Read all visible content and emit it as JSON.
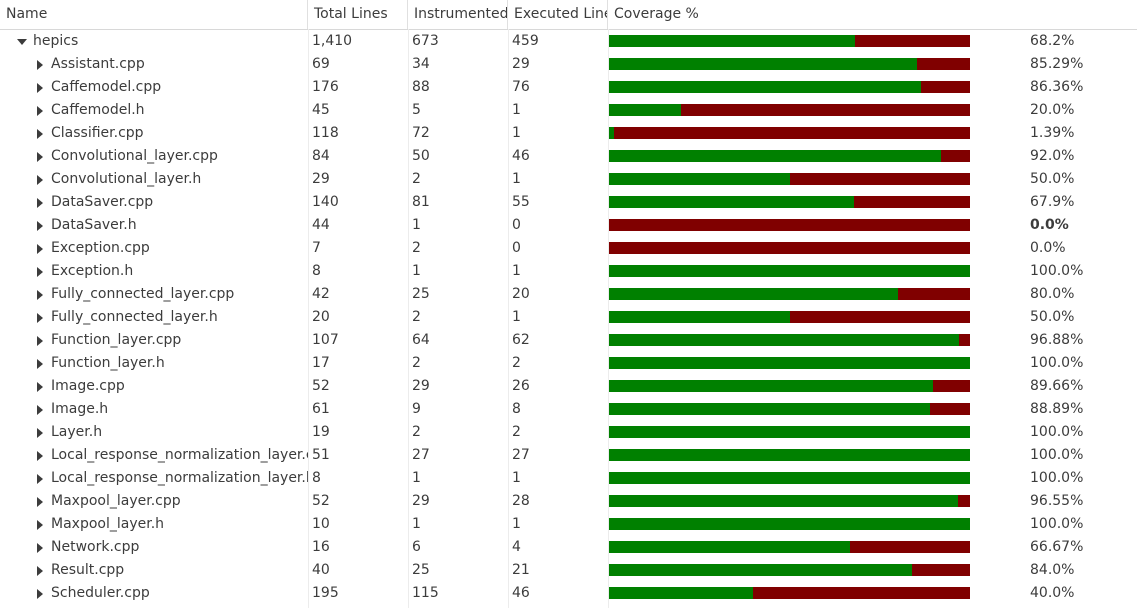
{
  "columns": {
    "name": "Name",
    "total_lines": "Total Lines",
    "instrumented": "Instrumented",
    "executed_lines": "Executed Lines",
    "coverage": "Coverage %"
  },
  "colors": {
    "covered": "#008000",
    "uncovered": "#800000"
  },
  "rows": [
    {
      "name": "hepics",
      "expanded": true,
      "level": 0,
      "total": "1,410",
      "instrumented": "673",
      "executed": "459",
      "coverage": 0.682,
      "coverage_text": "68.2%"
    },
    {
      "name": "Assistant.cpp",
      "expanded": false,
      "level": 1,
      "total": "69",
      "instrumented": "34",
      "executed": "29",
      "coverage": 0.8529,
      "coverage_text": "85.29%"
    },
    {
      "name": "Caffemodel.cpp",
      "expanded": false,
      "level": 1,
      "total": "176",
      "instrumented": "88",
      "executed": "76",
      "coverage": 0.8636,
      "coverage_text": "86.36%"
    },
    {
      "name": "Caffemodel.h",
      "expanded": false,
      "level": 1,
      "total": "45",
      "instrumented": "5",
      "executed": "1",
      "coverage": 0.2,
      "coverage_text": "20.0%"
    },
    {
      "name": "Classifier.cpp",
      "expanded": false,
      "level": 1,
      "total": "118",
      "instrumented": "72",
      "executed": "1",
      "coverage": 0.0139,
      "coverage_text": "1.39%"
    },
    {
      "name": "Convolutional_layer.cpp",
      "expanded": false,
      "level": 1,
      "total": "84",
      "instrumented": "50",
      "executed": "46",
      "coverage": 0.92,
      "coverage_text": "92.0%"
    },
    {
      "name": "Convolutional_layer.h",
      "expanded": false,
      "level": 1,
      "total": "29",
      "instrumented": "2",
      "executed": "1",
      "coverage": 0.5,
      "coverage_text": "50.0%"
    },
    {
      "name": "DataSaver.cpp",
      "expanded": false,
      "level": 1,
      "total": "140",
      "instrumented": "81",
      "executed": "55",
      "coverage": 0.679,
      "coverage_text": "67.9%"
    },
    {
      "name": "DataSaver.h",
      "expanded": false,
      "level": 1,
      "total": "44",
      "instrumented": "1",
      "executed": "0",
      "coverage": 0.0,
      "coverage_text": "0.0%",
      "bold_pct": true
    },
    {
      "name": "Exception.cpp",
      "expanded": false,
      "level": 1,
      "total": "7",
      "instrumented": "2",
      "executed": "0",
      "coverage": 0.0,
      "coverage_text": "0.0%"
    },
    {
      "name": "Exception.h",
      "expanded": false,
      "level": 1,
      "total": "8",
      "instrumented": "1",
      "executed": "1",
      "coverage": 1.0,
      "coverage_text": "100.0%"
    },
    {
      "name": "Fully_connected_layer.cpp",
      "expanded": false,
      "level": 1,
      "total": "42",
      "instrumented": "25",
      "executed": "20",
      "coverage": 0.8,
      "coverage_text": "80.0%"
    },
    {
      "name": "Fully_connected_layer.h",
      "expanded": false,
      "level": 1,
      "total": "20",
      "instrumented": "2",
      "executed": "1",
      "coverage": 0.5,
      "coverage_text": "50.0%"
    },
    {
      "name": "Function_layer.cpp",
      "expanded": false,
      "level": 1,
      "total": "107",
      "instrumented": "64",
      "executed": "62",
      "coverage": 0.9688,
      "coverage_text": "96.88%"
    },
    {
      "name": "Function_layer.h",
      "expanded": false,
      "level": 1,
      "total": "17",
      "instrumented": "2",
      "executed": "2",
      "coverage": 1.0,
      "coverage_text": "100.0%"
    },
    {
      "name": "Image.cpp",
      "expanded": false,
      "level": 1,
      "total": "52",
      "instrumented": "29",
      "executed": "26",
      "coverage": 0.8966,
      "coverage_text": "89.66%"
    },
    {
      "name": "Image.h",
      "expanded": false,
      "level": 1,
      "total": "61",
      "instrumented": "9",
      "executed": "8",
      "coverage": 0.8889,
      "coverage_text": "88.89%"
    },
    {
      "name": "Layer.h",
      "expanded": false,
      "level": 1,
      "total": "19",
      "instrumented": "2",
      "executed": "2",
      "coverage": 1.0,
      "coverage_text": "100.0%"
    },
    {
      "name": "Local_response_normalization_layer.cpp",
      "expanded": false,
      "level": 1,
      "total": "51",
      "instrumented": "27",
      "executed": "27",
      "coverage": 1.0,
      "coverage_text": "100.0%"
    },
    {
      "name": "Local_response_normalization_layer.h",
      "expanded": false,
      "level": 1,
      "total": "8",
      "instrumented": "1",
      "executed": "1",
      "coverage": 1.0,
      "coverage_text": "100.0%"
    },
    {
      "name": "Maxpool_layer.cpp",
      "expanded": false,
      "level": 1,
      "total": "52",
      "instrumented": "29",
      "executed": "28",
      "coverage": 0.9655,
      "coverage_text": "96.55%"
    },
    {
      "name": "Maxpool_layer.h",
      "expanded": false,
      "level": 1,
      "total": "10",
      "instrumented": "1",
      "executed": "1",
      "coverage": 1.0,
      "coverage_text": "100.0%"
    },
    {
      "name": "Network.cpp",
      "expanded": false,
      "level": 1,
      "total": "16",
      "instrumented": "6",
      "executed": "4",
      "coverage": 0.6667,
      "coverage_text": "66.67%"
    },
    {
      "name": "Result.cpp",
      "expanded": false,
      "level": 1,
      "total": "40",
      "instrumented": "25",
      "executed": "21",
      "coverage": 0.84,
      "coverage_text": "84.0%"
    },
    {
      "name": "Scheduler.cpp",
      "expanded": false,
      "level": 1,
      "total": "195",
      "instrumented": "115",
      "executed": "46",
      "coverage": 0.4,
      "coverage_text": "40.0%"
    }
  ]
}
